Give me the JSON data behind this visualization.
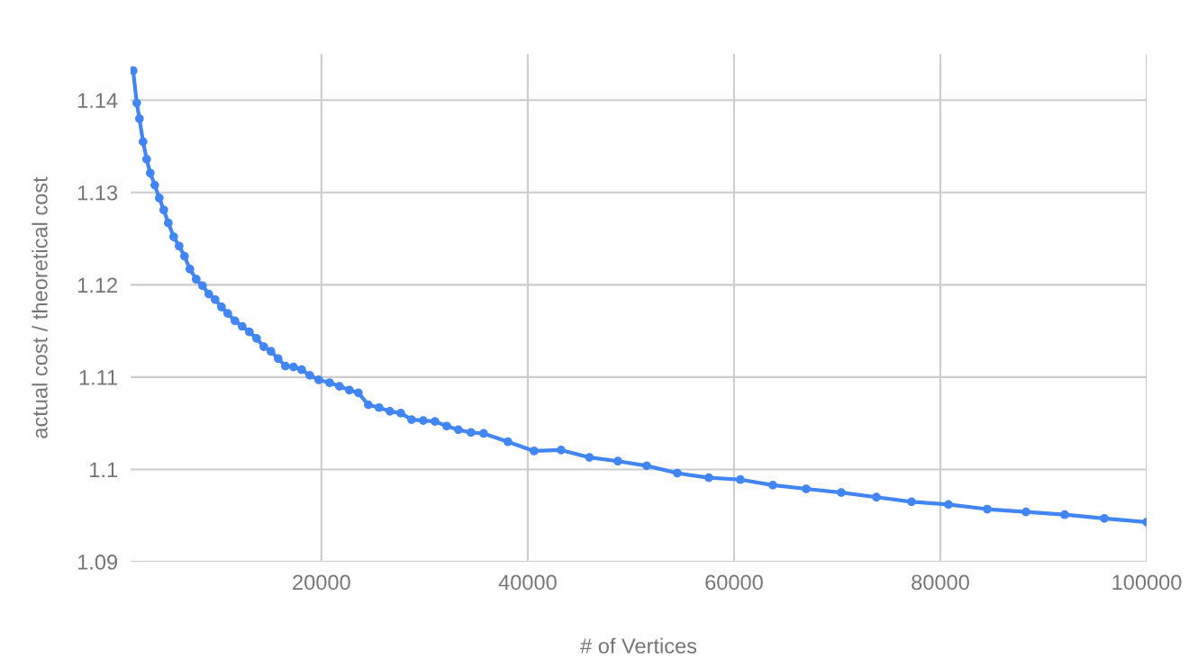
{
  "chart_data": {
    "type": "line",
    "xlabel": "# of Vertices",
    "ylabel": "actual cost / theoretical cost",
    "x": [
      1747,
      2096,
      2358,
      2707,
      3057,
      3406,
      3843,
      4279,
      4716,
      5153,
      5677,
      6201,
      6725,
      7249,
      7860,
      8472,
      9083,
      9694,
      10306,
      10917,
      11616,
      12314,
      13013,
      13712,
      14410,
      15109,
      15808,
      16507,
      17293,
      18079,
      18865,
      19738,
      20786,
      21747,
      22707,
      23581,
      24541,
      25590,
      26638,
      27686,
      28734,
      29869,
      31004,
      32140,
      33275,
      34498,
      35721,
      38079,
      40612,
      43231,
      45983,
      48734,
      51528,
      54498,
      57555,
      60611,
      63755,
      66987,
      70393,
      73799,
      77205,
      80786,
      84541,
      88297,
      92052,
      95895,
      100000
    ],
    "series": [
      {
        "color": "#4285f4",
        "values": [
          1.1432,
          1.1397,
          1.138,
          1.1355,
          1.1336,
          1.1321,
          1.1308,
          1.1294,
          1.1281,
          1.1267,
          1.1252,
          1.1242,
          1.1231,
          1.1217,
          1.1206,
          1.1199,
          1.119,
          1.1184,
          1.1176,
          1.1169,
          1.1161,
          1.1155,
          1.1149,
          1.1142,
          1.1133,
          1.1128,
          1.112,
          1.1112,
          1.1111,
          1.1108,
          1.1102,
          1.1097,
          1.1094,
          1.109,
          1.1086,
          1.1083,
          1.107,
          1.1067,
          1.1063,
          1.1061,
          1.1054,
          1.1053,
          1.1052,
          1.1047,
          1.1043,
          1.104,
          1.1039,
          1.103,
          1.102,
          1.1021,
          1.1013,
          1.1009,
          1.1004,
          1.0996,
          1.0991,
          1.0989,
          1.0983,
          1.0979,
          1.0975,
          1.097,
          1.0965,
          1.0962,
          1.0957,
          1.0954,
          1.0951,
          1.0947,
          1.0943
        ]
      }
    ],
    "xlim": [
      1500,
      100000
    ],
    "ylim": [
      1.09,
      1.145
    ],
    "xticks": [
      20000,
      40000,
      60000,
      80000,
      100000
    ],
    "yticks": [
      1.09,
      1.1,
      1.11,
      1.12,
      1.13,
      1.14
    ],
    "grid": true,
    "marker": "circle",
    "line_style": "solid"
  }
}
